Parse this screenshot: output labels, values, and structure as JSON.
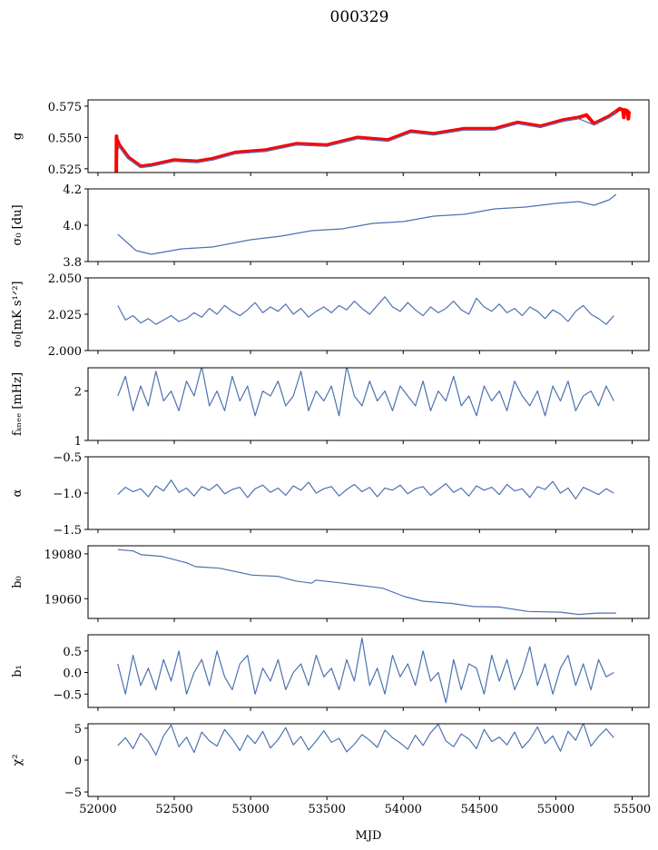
{
  "chart_data": {
    "type": "line",
    "title": "000329",
    "xlabel": "MJD",
    "xlim": [
      51935,
      55610
    ],
    "xticks": [
      52000,
      52500,
      53000,
      53500,
      54000,
      54500,
      55000,
      55500
    ],
    "x": [
      52130,
      52180,
      52230,
      52280,
      52330,
      52380,
      52430,
      52480,
      52530,
      52580,
      52630,
      52680,
      52730,
      52780,
      52830,
      52880,
      52930,
      52980,
      53030,
      53080,
      53130,
      53180,
      53230,
      53280,
      53330,
      53380,
      53430,
      53480,
      53530,
      53580,
      53630,
      53680,
      53730,
      53780,
      53830,
      53880,
      53930,
      53980,
      54030,
      54080,
      54130,
      54180,
      54230,
      54280,
      54330,
      54380,
      54430,
      54480,
      54530,
      54580,
      54630,
      54680,
      54730,
      54780,
      54830,
      54880,
      54930,
      54980,
      55030,
      55080,
      55130,
      55180,
      55230,
      55280,
      55330,
      55380
    ],
    "color_data": "#4c72b0",
    "color_model": "#ff0000",
    "panels": [
      {
        "ylabel": "g",
        "ylim": [
          0.522,
          0.58
        ],
        "yticks": [
          0.525,
          0.55,
          0.575
        ],
        "ytick_labels": [
          "0.525",
          "0.550",
          "0.575"
        ],
        "series": [
          {
            "name": "model",
            "color": "#ff0000",
            "x": [
              52120,
              52122,
              52124,
              52126,
              52140,
              52200,
              52280,
              52350,
              52500,
              52650,
              52750,
              52900,
              53100,
              53300,
              53500,
              53700,
              53900,
              54050,
              54200,
              54400,
              54600,
              54750,
              54900,
              55050,
              55150,
              55200,
              55250,
              55350,
              55420,
              55440,
              55445,
              55450,
              55470,
              55475,
              55480
            ],
            "values": [
              0.52,
              0.551,
              0.541,
              0.548,
              0.544,
              0.534,
              0.527,
              0.528,
              0.532,
              0.531,
              0.533,
              0.538,
              0.54,
              0.545,
              0.544,
              0.55,
              0.548,
              0.555,
              0.553,
              0.557,
              0.557,
              0.562,
              0.559,
              0.564,
              0.566,
              0.568,
              0.561,
              0.567,
              0.573,
              0.572,
              0.566,
              0.572,
              0.571,
              0.565,
              0.571
            ]
          },
          {
            "name": "data",
            "color": "#4c72b0",
            "x": [
              52130,
              52200,
              52280,
              52350,
              52500,
              52650,
              52750,
              52900,
              53100,
              53300,
              53500,
              53700,
              53900,
              54050,
              54200,
              54400,
              54600,
              54750,
              54900,
              55050,
              55150,
              55250,
              55350,
              55395
            ],
            "values": [
              0.544,
              0.533,
              0.526,
              0.527,
              0.531,
              0.53,
              0.532,
              0.537,
              0.539,
              0.544,
              0.543,
              0.549,
              0.547,
              0.554,
              0.552,
              0.556,
              0.556,
              0.561,
              0.558,
              0.563,
              0.565,
              0.56,
              0.566,
              0.571
            ]
          }
        ]
      },
      {
        "ylabel": "σ₀ [du]",
        "ylim": [
          3.8,
          4.2
        ],
        "yticks": [
          3.8,
          4.0,
          4.2
        ],
        "ytick_labels": [
          "3.8",
          "4.0",
          "4.2"
        ],
        "series": [
          {
            "name": "data",
            "color": "#4c72b0",
            "x": [
              52130,
              52250,
              52350,
              52550,
              52750,
              53000,
              53200,
              53400,
              53600,
              53800,
              54000,
              54200,
              54400,
              54600,
              54800,
              55000,
              55150,
              55250,
              55350,
              55395
            ],
            "values": [
              3.95,
              3.86,
              3.84,
              3.87,
              3.88,
              3.92,
              3.94,
              3.97,
              3.98,
              4.01,
              4.02,
              4.05,
              4.06,
              4.09,
              4.1,
              4.12,
              4.13,
              4.11,
              4.14,
              4.17
            ]
          }
        ]
      },
      {
        "ylabel": "σ₀[mK s¹ᐟ²]",
        "ylim": [
          2.0,
          2.05
        ],
        "yticks": [
          2.0,
          2.025,
          2.05
        ],
        "ytick_labels": [
          "2.000",
          "2.025",
          "2.050"
        ],
        "series": [
          {
            "name": "data",
            "color": "#4c72b0",
            "values": [
              2.031,
              2.021,
              2.024,
              2.019,
              2.022,
              2.018,
              2.021,
              2.024,
              2.02,
              2.022,
              2.026,
              2.023,
              2.029,
              2.025,
              2.031,
              2.027,
              2.024,
              2.028,
              2.033,
              2.026,
              2.03,
              2.027,
              2.032,
              2.025,
              2.029,
              2.023,
              2.027,
              2.03,
              2.026,
              2.031,
              2.028,
              2.034,
              2.029,
              2.025,
              2.031,
              2.037,
              2.03,
              2.027,
              2.033,
              2.028,
              2.024,
              2.03,
              2.026,
              2.029,
              2.034,
              2.028,
              2.025,
              2.036,
              2.03,
              2.027,
              2.032,
              2.026,
              2.029,
              2.024,
              2.03,
              2.027,
              2.022,
              2.028,
              2.025,
              2.02,
              2.027,
              2.031,
              2.025,
              2.022,
              2.018,
              2.024
            ]
          }
        ]
      },
      {
        "ylabel": "fₖₙₑₑ [mHz]",
        "ylim": [
          1.0,
          2.47
        ],
        "yticks": [
          1,
          2
        ],
        "ytick_labels": [
          "1",
          "2"
        ],
        "series": [
          {
            "name": "data",
            "color": "#4c72b0",
            "values": [
              1.9,
              2.3,
              1.6,
              2.1,
              1.7,
              2.4,
              1.8,
              2.0,
              1.6,
              2.2,
              1.9,
              2.5,
              1.7,
              2.0,
              1.6,
              2.3,
              1.8,
              2.1,
              1.5,
              2.0,
              1.9,
              2.2,
              1.7,
              1.9,
              2.4,
              1.6,
              2.0,
              1.8,
              2.1,
              1.5,
              2.5,
              1.9,
              1.7,
              2.2,
              1.8,
              2.0,
              1.6,
              2.1,
              1.9,
              1.7,
              2.2,
              1.6,
              2.0,
              1.8,
              2.3,
              1.7,
              1.9,
              1.5,
              2.1,
              1.8,
              2.0,
              1.6,
              2.2,
              1.9,
              1.7,
              2.0,
              1.5,
              2.1,
              1.8,
              2.2,
              1.6,
              1.9,
              2.0,
              1.7,
              2.1,
              1.8
            ]
          }
        ]
      },
      {
        "ylabel": "α",
        "ylim": [
          -1.5,
          -0.5
        ],
        "yticks": [
          -1.5,
          -1.0,
          -0.5
        ],
        "ytick_labels": [
          "−1.5",
          "−1.0",
          "−0.5"
        ],
        "series": [
          {
            "name": "data",
            "color": "#4c72b0",
            "values": [
              -1.02,
              -0.92,
              -0.98,
              -0.94,
              -1.05,
              -0.9,
              -0.97,
              -0.82,
              -0.99,
              -0.93,
              -1.04,
              -0.91,
              -0.96,
              -0.88,
              -1.01,
              -0.95,
              -0.92,
              -1.06,
              -0.94,
              -0.89,
              -0.99,
              -0.93,
              -1.03,
              -0.9,
              -0.96,
              -0.85,
              -1.0,
              -0.94,
              -0.91,
              -1.04,
              -0.95,
              -0.88,
              -0.98,
              -0.92,
              -1.05,
              -0.93,
              -0.96,
              -0.89,
              -1.01,
              -0.94,
              -0.91,
              -1.03,
              -0.95,
              -0.87,
              -0.99,
              -0.93,
              -1.04,
              -0.9,
              -0.96,
              -0.92,
              -1.02,
              -0.88,
              -0.97,
              -0.94,
              -1.06,
              -0.91,
              -0.95,
              -0.84,
              -1.0,
              -0.93,
              -1.08,
              -0.92,
              -0.97,
              -1.02,
              -0.94,
              -1.0
            ]
          }
        ]
      },
      {
        "ylabel": "b₀",
        "ylim": [
          19051.2,
          19083.6
        ],
        "yticks": [
          19060,
          19080
        ],
        "ytick_labels": [
          "19060",
          "19080"
        ],
        "series": [
          {
            "name": "data",
            "color": "#4c72b0",
            "x": [
              52130,
              52230,
              52285,
              52416,
              52582,
              52640,
              52796,
              53010,
              53177,
              53296,
              53400,
              53427,
              53605,
              53866,
              54009,
              54128,
              54318,
              54460,
              54627,
              54817,
              55031,
              55150,
              55269,
              55395
            ],
            "values": [
              19081.9,
              19081.3,
              19079.6,
              19078.9,
              19076.0,
              19074.3,
              19073.6,
              19070.5,
              19070.0,
              19067.9,
              19066.9,
              19068.3,
              19066.9,
              19064.7,
              19060.9,
              19058.9,
              19057.9,
              19056.5,
              19056.3,
              19054.3,
              19054.0,
              19053.0,
              19053.6,
              19053.6
            ]
          }
        ]
      },
      {
        "ylabel": "b₁",
        "ylim": [
          -0.81,
          0.875
        ],
        "yticks": [
          -0.5,
          0.0,
          0.5
        ],
        "ytick_labels": [
          "−0.5",
          "0.0",
          "0.5"
        ],
        "series": [
          {
            "name": "data",
            "color": "#4c72b0",
            "values": [
              0.2,
              -0.5,
              0.4,
              -0.3,
              0.1,
              -0.4,
              0.3,
              -0.2,
              0.5,
              -0.5,
              0.0,
              0.3,
              -0.3,
              0.5,
              -0.1,
              -0.4,
              0.2,
              0.4,
              -0.5,
              0.1,
              -0.2,
              0.3,
              -0.4,
              0.0,
              0.2,
              -0.3,
              0.4,
              -0.1,
              0.1,
              -0.4,
              0.3,
              -0.2,
              0.8,
              -0.3,
              0.1,
              -0.5,
              0.4,
              -0.1,
              0.2,
              -0.3,
              0.5,
              -0.2,
              0.0,
              -0.7,
              0.3,
              -0.4,
              0.2,
              0.1,
              -0.5,
              0.4,
              -0.2,
              0.3,
              -0.4,
              0.0,
              0.6,
              -0.3,
              0.2,
              -0.5,
              0.1,
              0.4,
              -0.3,
              0.2,
              -0.4,
              0.3,
              -0.1,
              0.0
            ]
          }
        ]
      },
      {
        "ylabel": "χ²",
        "ylim": [
          -5.7,
          5.7
        ],
        "yticks": [
          -5,
          0,
          5
        ],
        "ytick_labels": [
          "−5",
          "0",
          "5"
        ],
        "series": [
          {
            "name": "data",
            "color": "#4c72b0",
            "values": [
              2.3,
              3.5,
              1.8,
              4.2,
              2.9,
              0.8,
              3.8,
              5.5,
              2.1,
              3.6,
              1.2,
              4.4,
              3.0,
              2.2,
              4.8,
              3.3,
              1.5,
              3.9,
              2.6,
              4.5,
              1.9,
              3.2,
              5.1,
              2.4,
              3.7,
              1.6,
              3.0,
              4.6,
              2.8,
              3.4,
              1.3,
              2.5,
              4.0,
              3.1,
              2.0,
              4.7,
              3.5,
              2.7,
              1.7,
              3.9,
              2.3,
              4.3,
              5.6,
              3.0,
              2.1,
              4.1,
              3.3,
              1.8,
              4.8,
              2.9,
              3.6,
              2.4,
              4.4,
              1.9,
              3.2,
              5.2,
              2.6,
              3.8,
              1.4,
              4.5,
              3.1,
              5.8,
              2.2,
              3.7,
              4.9,
              3.5
            ]
          }
        ]
      }
    ]
  }
}
